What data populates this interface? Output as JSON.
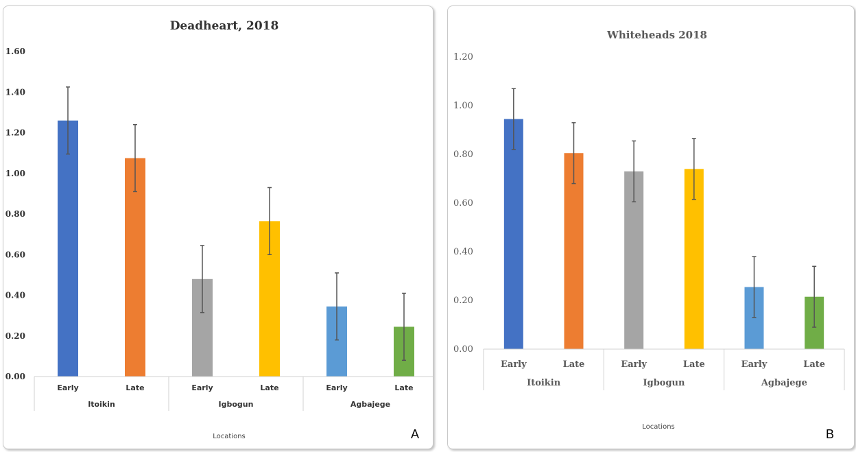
{
  "chart_data": [
    {
      "type": "bar",
      "title": "Deadheart, 2018",
      "xlabel": "Locations",
      "ylabel": "",
      "panel_label": "A",
      "ylim": [
        0,
        1.6
      ],
      "yticks": [
        "0.00",
        "0.20",
        "0.40",
        "0.60",
        "0.80",
        "1.00",
        "1.20",
        "1.40",
        "1.60"
      ],
      "groups": [
        "Itoikin",
        "Igbogun",
        "Agbajege"
      ],
      "categories": [
        "Early",
        "Late",
        "Early",
        "Late",
        "Early",
        "Late"
      ],
      "values": [
        1.26,
        1.075,
        0.48,
        0.765,
        0.345,
        0.245
      ],
      "errors": [
        0.165,
        0.165,
        0.165,
        0.165,
        0.165,
        0.165
      ],
      "colors": [
        "#4472C4",
        "#ED7D31",
        "#A5A5A5",
        "#FFC000",
        "#5B9BD5",
        "#70AD47"
      ],
      "grid": false
    },
    {
      "type": "bar",
      "title": "Whiteheads 2018",
      "xlabel": "Locations",
      "ylabel": "",
      "panel_label": "B",
      "ylim": [
        0,
        1.2
      ],
      "yticks": [
        "0.00",
        "0.20",
        "0.40",
        "0.60",
        "0.80",
        "1.00",
        "1.20"
      ],
      "groups": [
        "Itoikin",
        "Igbogun",
        "Agbajege"
      ],
      "categories": [
        "Early",
        "Late",
        "Early",
        "Late",
        "Early",
        "Late"
      ],
      "values": [
        0.945,
        0.805,
        0.73,
        0.74,
        0.255,
        0.215
      ],
      "errors": [
        0.125,
        0.125,
        0.125,
        0.125,
        0.125,
        0.125
      ],
      "colors": [
        "#4472C4",
        "#ED7D31",
        "#A5A5A5",
        "#FFC000",
        "#5B9BD5",
        "#70AD47"
      ],
      "grid": false
    }
  ]
}
